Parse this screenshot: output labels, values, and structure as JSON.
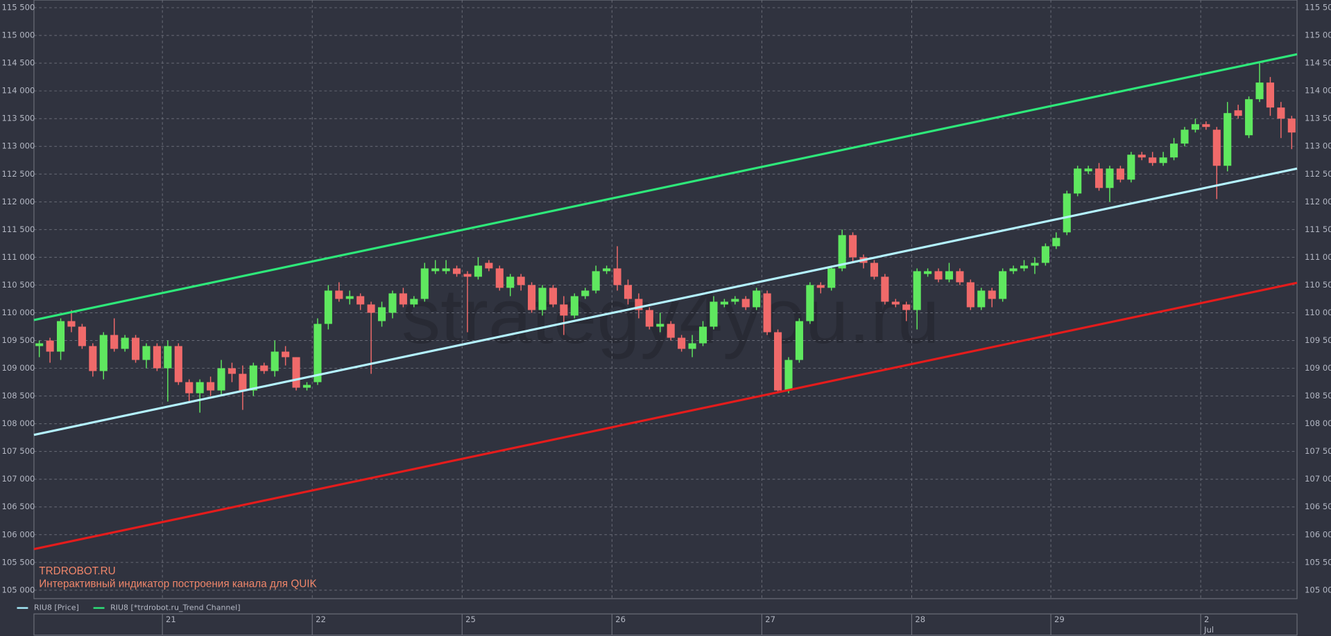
{
  "chart_data": {
    "type": "candlestick",
    "watermark": "strategy4you.ru",
    "annotations": [
      "TRDROBOT.RU",
      "Интерактивный индикатор построения канала для QUIK"
    ],
    "categories": [
      null,
      null,
      null,
      null,
      null,
      null,
      null,
      null,
      null,
      null,
      null,
      null,
      "21",
      null,
      null,
      null,
      null,
      null,
      null,
      null,
      null,
      null,
      null,
      null,
      null,
      null,
      "22",
      null,
      null,
      null,
      null,
      null,
      null,
      null,
      null,
      null,
      null,
      null,
      null,
      null,
      "25",
      null,
      null,
      null,
      null,
      null,
      null,
      null,
      null,
      null,
      null,
      null,
      null,
      null,
      "26",
      null,
      null,
      null,
      null,
      null,
      null,
      null,
      null,
      null,
      null,
      null,
      null,
      null,
      "27",
      null,
      null,
      null,
      null,
      null,
      null,
      null,
      null,
      null,
      null,
      null,
      null,
      null,
      "28",
      null,
      null,
      null,
      null,
      null,
      null,
      null,
      null,
      null,
      null,
      null,
      null,
      "29",
      null,
      null,
      null,
      null,
      null,
      null,
      null,
      null,
      null,
      null,
      null,
      null,
      null,
      "2",
      null,
      null,
      null,
      null,
      null,
      null,
      null,
      null
    ],
    "month_label": "Jul",
    "ylim": [
      105000,
      115500
    ],
    "yticks": [
      {
        "value": 105000,
        "label": "105 000"
      },
      {
        "value": 105500,
        "label": "105 500"
      },
      {
        "value": 106000,
        "label": "106 000"
      },
      {
        "value": 106500,
        "label": "106 500"
      },
      {
        "value": 107000,
        "label": "107 000"
      },
      {
        "value": 107500,
        "label": "107 500"
      },
      {
        "value": 108000,
        "label": "108 000"
      },
      {
        "value": 108500,
        "label": "108 500"
      },
      {
        "value": 109000,
        "label": "109 000"
      },
      {
        "value": 109500,
        "label": "109 500"
      },
      {
        "value": 110000,
        "label": "110 000"
      },
      {
        "value": 110500,
        "label": "110 500"
      },
      {
        "value": 111000,
        "label": "111 000"
      },
      {
        "value": 111500,
        "label": "111 500"
      },
      {
        "value": 112000,
        "label": "112 000"
      },
      {
        "value": 112500,
        "label": "112 500"
      },
      {
        "value": 113000,
        "label": "113 000"
      },
      {
        "value": 113500,
        "label": "113 500"
      },
      {
        "value": 114000,
        "label": "114 000"
      },
      {
        "value": 114500,
        "label": "114 500"
      },
      {
        "value": 115000,
        "label": "115 000"
      },
      {
        "value": 115500,
        "label": "115 500"
      }
    ],
    "grid": true,
    "series": [
      {
        "name": "RIU8 [Price]",
        "color": "#a8f0ff",
        "up_color": "#5fe85f",
        "down_color": "#f06a6a",
        "open": [
          109400,
          109500,
          109300,
          109850,
          109750,
          109400,
          108950,
          109600,
          109350,
          109550,
          109150,
          109400,
          109000,
          109400,
          108750,
          108550,
          108750,
          108600,
          109000,
          108900,
          108600,
          109050,
          108950,
          109300,
          109200,
          108650,
          108750,
          109800,
          110400,
          110250,
          110300,
          110150,
          109850,
          110000,
          110350,
          110150,
          110250,
          110750,
          110750,
          110800,
          110700,
          110650,
          110900,
          110800,
          110450,
          110650,
          110500,
          110050,
          110450,
          110150,
          109950,
          110300,
          110400,
          110750,
          110800,
          110500,
          110250,
          110050,
          109750,
          109800,
          109550,
          109350,
          109450,
          109750,
          110150,
          110200,
          110250,
          110100,
          110350,
          109650,
          108600,
          109150,
          109850,
          110500,
          110450,
          110800,
          111400,
          111000,
          110900,
          110650,
          110200,
          110150,
          110050,
          110700,
          110750,
          110600,
          110750,
          110550,
          110100,
          110400,
          110250,
          110750,
          110800,
          110850,
          110900,
          111200,
          111450,
          112150,
          112550,
          112600,
          112250,
          112600,
          112400,
          112850,
          112800,
          112700,
          112800,
          113050,
          113300,
          113400,
          113300,
          112650,
          113650,
          113200,
          113850,
          114150,
          113700,
          113500
        ],
        "high": [
          109500,
          109550,
          109900,
          110050,
          109800,
          109450,
          109650,
          109900,
          109600,
          109600,
          109450,
          109450,
          109500,
          109450,
          108800,
          108800,
          108850,
          109150,
          109100,
          109050,
          109100,
          109100,
          109500,
          109400,
          109200,
          108750,
          109900,
          110500,
          110550,
          110400,
          110350,
          110200,
          110200,
          110400,
          110450,
          110300,
          110900,
          110950,
          110950,
          110850,
          110750,
          111000,
          110950,
          110850,
          110700,
          110700,
          110550,
          110500,
          110500,
          110300,
          110350,
          110450,
          110850,
          110850,
          111200,
          110600,
          110350,
          110100,
          110000,
          109850,
          109600,
          109600,
          109850,
          110300,
          110250,
          110300,
          110300,
          110450,
          110400,
          109700,
          109200,
          109900,
          110550,
          110550,
          110850,
          111500,
          111450,
          111050,
          110950,
          110700,
          110250,
          110200,
          110800,
          110800,
          110800,
          110900,
          110800,
          110600,
          110450,
          110450,
          110800,
          110850,
          110950,
          111000,
          111250,
          111450,
          112200,
          112650,
          112650,
          112700,
          112650,
          112650,
          112900,
          112900,
          112900,
          112900,
          113150,
          113350,
          113500,
          113450,
          113350,
          113800,
          113750,
          113900,
          114500,
          114250,
          113800,
          113550
        ],
        "low": [
          109200,
          109100,
          109150,
          109650,
          109350,
          108850,
          108800,
          109300,
          109300,
          109100,
          109000,
          108950,
          108400,
          108700,
          108400,
          108200,
          108500,
          108500,
          108750,
          108250,
          108500,
          108900,
          108850,
          109050,
          108600,
          108600,
          108700,
          109700,
          110200,
          110150,
          110050,
          108900,
          109750,
          109900,
          110100,
          110100,
          110200,
          110700,
          110700,
          110650,
          109650,
          110600,
          110750,
          110400,
          110300,
          110400,
          110000,
          109950,
          110100,
          109600,
          109900,
          110250,
          110350,
          110700,
          110400,
          110150,
          109900,
          109700,
          109650,
          109500,
          109300,
          109200,
          109400,
          109700,
          110100,
          110150,
          110050,
          110050,
          109600,
          108550,
          108550,
          109100,
          109800,
          110350,
          110400,
          110750,
          110900,
          110800,
          110600,
          110150,
          110100,
          109850,
          109700,
          110650,
          110550,
          110550,
          110500,
          110050,
          110050,
          110100,
          110200,
          110700,
          110750,
          110700,
          110850,
          111150,
          111400,
          112100,
          112500,
          112200,
          112000,
          112350,
          112350,
          112750,
          112650,
          112650,
          112750,
          113000,
          113250,
          113300,
          112050,
          112550,
          113500,
          113150,
          113800,
          113550,
          113150,
          112950
        ],
        "close": [
          109450,
          109300,
          109850,
          109750,
          109400,
          108950,
          109600,
          109350,
          109550,
          109150,
          109400,
          109000,
          109400,
          108750,
          108550,
          108750,
          108600,
          109000,
          108900,
          108600,
          109050,
          108950,
          109300,
          109200,
          108650,
          108700,
          109800,
          110400,
          110250,
          110300,
          110150,
          110000,
          110100,
          110350,
          110150,
          110250,
          110800,
          110800,
          110800,
          110700,
          110650,
          110850,
          110800,
          110450,
          110650,
          110500,
          110050,
          110450,
          110150,
          109950,
          110300,
          110400,
          110750,
          110800,
          110500,
          110250,
          110050,
          109750,
          109800,
          109550,
          109350,
          109450,
          109750,
          110200,
          110200,
          110250,
          110100,
          110400,
          109650,
          108600,
          109150,
          109850,
          110500,
          110450,
          110800,
          111400,
          111000,
          110900,
          110650,
          110200,
          110150,
          110050,
          110750,
          110750,
          110600,
          110750,
          110550,
          110100,
          110400,
          110250,
          110750,
          110800,
          110850,
          110900,
          111200,
          111350,
          112150,
          112600,
          112600,
          112250,
          112600,
          112400,
          112850,
          112800,
          112700,
          112800,
          113050,
          113300,
          113400,
          113350,
          112650,
          113600,
          113550,
          113850,
          114150,
          113700,
          113500,
          113250
        ]
      },
      {
        "name": "RIU8 [*trdrobot.ru_Trend Channel]",
        "color": "#2ee87a",
        "lines": [
          {
            "color": "#2ee87a",
            "values": [
              109870,
              114660
            ]
          },
          {
            "color": "#b4f2ff",
            "values": [
              107800,
              112600
            ]
          },
          {
            "color": "#e41c1c",
            "values": [
              105740,
              110540
            ]
          }
        ]
      }
    ]
  }
}
